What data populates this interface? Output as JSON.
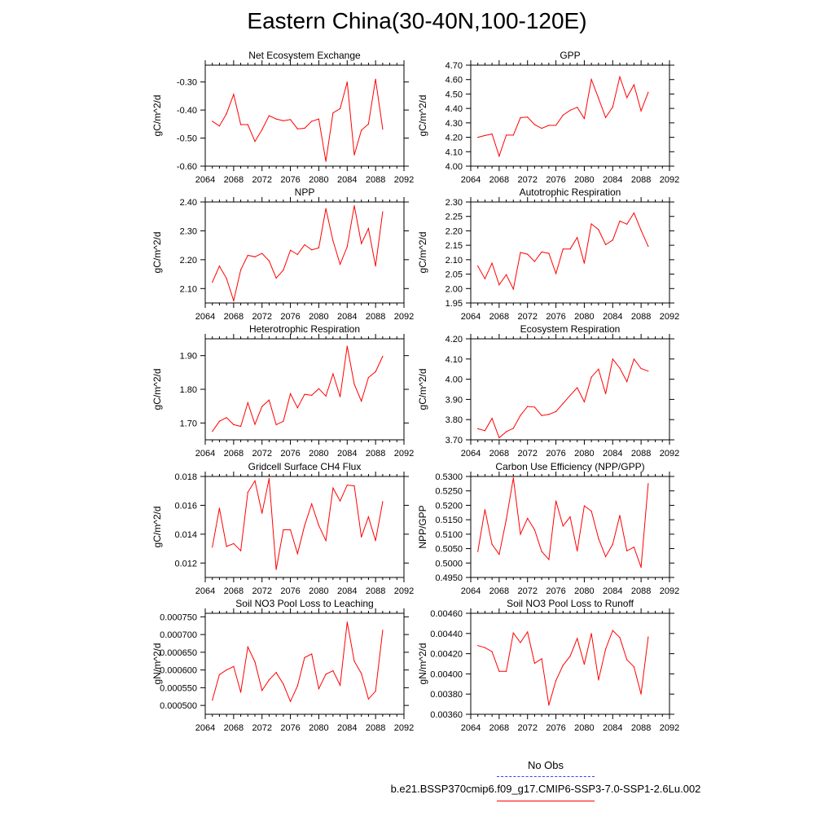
{
  "title": "Eastern China(30-40N,100-120E)",
  "legend": {
    "obs_label": "No Obs",
    "case_label": "b.e21.BSSP370cmip6.f09_g17.CMIP6-SSP3-7.0-SSP1-2.6Lu.002",
    "obs_color": "#3b3bff",
    "case_color": "#ff0000"
  },
  "chart_data": [
    {
      "type": "line",
      "title": "Net Ecosystem Exchange",
      "ylabel": "gC/m^2/d",
      "xlim": [
        2064,
        2092
      ],
      "xticks": [
        "2064",
        "2068",
        "2072",
        "2076",
        "2080",
        "2084",
        "2088",
        "2092"
      ],
      "ylim": [
        -0.6,
        -0.24
      ],
      "yticks": [
        "-0.60",
        "-0.50",
        "-0.40",
        "-0.30"
      ],
      "yticks_values": [
        -0.6,
        -0.5,
        -0.4,
        -0.3
      ],
      "x": [
        2065,
        2066,
        2067,
        2068,
        2069,
        2070,
        2071,
        2072,
        2073,
        2074,
        2075,
        2076,
        2077,
        2078,
        2079,
        2080,
        2081,
        2082,
        2083,
        2084,
        2085,
        2086,
        2087,
        2088,
        2089
      ],
      "series": [
        {
          "color": "#ff0000",
          "values": [
            -0.44,
            -0.457,
            -0.413,
            -0.344,
            -0.452,
            -0.452,
            -0.512,
            -0.47,
            -0.42,
            -0.432,
            -0.438,
            -0.434,
            -0.467,
            -0.465,
            -0.44,
            -0.432,
            -0.583,
            -0.41,
            -0.395,
            -0.3,
            -0.56,
            -0.472,
            -0.45,
            -0.29,
            -0.468
          ]
        }
      ]
    },
    {
      "type": "line",
      "title": "GPP",
      "ylabel": "gC/m^2/d",
      "xlim": [
        2064,
        2092
      ],
      "xticks": [
        "2064",
        "2068",
        "2072",
        "2076",
        "2080",
        "2084",
        "2088",
        "2092"
      ],
      "ylim": [
        4.0,
        4.7
      ],
      "yticks": [
        "4.00",
        "4.10",
        "4.20",
        "4.30",
        "4.40",
        "4.50",
        "4.60",
        "4.70"
      ],
      "yticks_values": [
        4.0,
        4.1,
        4.2,
        4.3,
        4.4,
        4.5,
        4.6,
        4.7
      ],
      "x": [
        2065,
        2066,
        2067,
        2068,
        2069,
        2070,
        2071,
        2072,
        2073,
        2074,
        2075,
        2076,
        2077,
        2078,
        2079,
        2080,
        2081,
        2082,
        2083,
        2084,
        2085,
        2086,
        2087,
        2088,
        2089
      ],
      "series": [
        {
          "color": "#ff0000",
          "values": [
            4.2,
            4.212,
            4.223,
            4.07,
            4.215,
            4.215,
            4.336,
            4.34,
            4.288,
            4.262,
            4.283,
            4.283,
            4.354,
            4.387,
            4.408,
            4.33,
            4.601,
            4.47,
            4.337,
            4.41,
            4.619,
            4.475,
            4.564,
            4.383,
            4.512
          ]
        }
      ]
    },
    {
      "type": "line",
      "title": "NPP",
      "ylabel": "gC/m^2/d",
      "xlim": [
        2064,
        2092
      ],
      "xticks": [
        "2064",
        "2068",
        "2072",
        "2076",
        "2080",
        "2084",
        "2088",
        "2092"
      ],
      "ylim": [
        2.05,
        2.4
      ],
      "yticks": [
        "2.10",
        "2.20",
        "2.30",
        "2.40"
      ],
      "yticks_values": [
        2.1,
        2.2,
        2.3,
        2.4
      ],
      "x": [
        2065,
        2066,
        2067,
        2068,
        2069,
        2070,
        2071,
        2072,
        2073,
        2074,
        2075,
        2076,
        2077,
        2078,
        2079,
        2080,
        2081,
        2082,
        2083,
        2084,
        2085,
        2086,
        2087,
        2088,
        2089
      ],
      "series": [
        {
          "color": "#ff0000",
          "values": [
            2.122,
            2.178,
            2.135,
            2.058,
            2.165,
            2.215,
            2.21,
            2.222,
            2.196,
            2.136,
            2.164,
            2.233,
            2.218,
            2.252,
            2.234,
            2.241,
            2.377,
            2.265,
            2.184,
            2.245,
            2.387,
            2.256,
            2.308,
            2.178,
            2.366
          ]
        }
      ]
    },
    {
      "type": "line",
      "title": "Autotrophic Respiration",
      "ylabel": "gC/m^2/d",
      "xlim": [
        2064,
        2092
      ],
      "xticks": [
        "2064",
        "2068",
        "2072",
        "2076",
        "2080",
        "2084",
        "2088",
        "2092"
      ],
      "ylim": [
        1.95,
        2.3
      ],
      "yticks": [
        "1.95",
        "2.00",
        "2.05",
        "2.10",
        "2.15",
        "2.20",
        "2.25",
        "2.30"
      ],
      "yticks_values": [
        1.95,
        2.0,
        2.05,
        2.1,
        2.15,
        2.2,
        2.25,
        2.3
      ],
      "x": [
        2065,
        2066,
        2067,
        2068,
        2069,
        2070,
        2071,
        2072,
        2073,
        2074,
        2075,
        2076,
        2077,
        2078,
        2079,
        2080,
        2081,
        2082,
        2083,
        2084,
        2085,
        2086,
        2087,
        2088,
        2089
      ],
      "series": [
        {
          "color": "#ff0000",
          "values": [
            2.078,
            2.034,
            2.088,
            2.013,
            2.048,
            1.998,
            2.125,
            2.119,
            2.094,
            2.127,
            2.122,
            2.052,
            2.137,
            2.137,
            2.177,
            2.088,
            2.224,
            2.204,
            2.152,
            2.168,
            2.234,
            2.223,
            2.262,
            2.202,
            2.146
          ]
        }
      ]
    },
    {
      "type": "line",
      "title": "Heterotrophic Respiration",
      "ylabel": "gC/m^2/d",
      "xlim": [
        2064,
        2092
      ],
      "xticks": [
        "2064",
        "2068",
        "2072",
        "2076",
        "2080",
        "2084",
        "2088",
        "2092"
      ],
      "ylim": [
        1.65,
        1.95
      ],
      "yticks": [
        "1.70",
        "1.80",
        "1.90"
      ],
      "yticks_values": [
        1.7,
        1.8,
        1.9
      ],
      "x": [
        2065,
        2066,
        2067,
        2068,
        2069,
        2070,
        2071,
        2072,
        2073,
        2074,
        2075,
        2076,
        2077,
        2078,
        2079,
        2080,
        2081,
        2082,
        2083,
        2084,
        2085,
        2086,
        2087,
        2088,
        2089
      ],
      "series": [
        {
          "color": "#ff0000",
          "values": [
            1.675,
            1.705,
            1.716,
            1.695,
            1.69,
            1.76,
            1.696,
            1.749,
            1.768,
            1.695,
            1.705,
            1.787,
            1.745,
            1.785,
            1.782,
            1.802,
            1.78,
            1.846,
            1.778,
            1.928,
            1.815,
            1.765,
            1.835,
            1.852,
            1.898
          ]
        }
      ]
    },
    {
      "type": "line",
      "title": "Ecosystem Respiration",
      "ylabel": "gC/m^2/d",
      "xlim": [
        2064,
        2092
      ],
      "xticks": [
        "2064",
        "2068",
        "2072",
        "2076",
        "2080",
        "2084",
        "2088",
        "2092"
      ],
      "ylim": [
        3.7,
        4.2
      ],
      "yticks": [
        "3.70",
        "3.80",
        "3.90",
        "4.00",
        "4.10",
        "4.20"
      ],
      "yticks_values": [
        3.7,
        3.8,
        3.9,
        4.0,
        4.1,
        4.2
      ],
      "x": [
        2065,
        2066,
        2067,
        2068,
        2069,
        2070,
        2071,
        2072,
        2073,
        2074,
        2075,
        2076,
        2077,
        2078,
        2079,
        2080,
        2081,
        2082,
        2083,
        2084,
        2085,
        2086,
        2087,
        2088,
        2089
      ],
      "series": [
        {
          "color": "#ff0000",
          "values": [
            3.755,
            3.745,
            3.806,
            3.71,
            3.74,
            3.757,
            3.821,
            3.865,
            3.862,
            3.82,
            3.826,
            3.84,
            3.88,
            3.92,
            3.958,
            3.888,
            4.01,
            4.05,
            3.928,
            4.1,
            4.055,
            3.988,
            4.1,
            4.053,
            4.04
          ]
        }
      ]
    },
    {
      "type": "line",
      "title": "Gridcell Surface CH4 Flux",
      "ylabel": "gC/m^2/d",
      "xlim": [
        2064,
        2092
      ],
      "xticks": [
        "2064",
        "2068",
        "2072",
        "2076",
        "2080",
        "2084",
        "2088",
        "2092"
      ],
      "ylim": [
        0.011,
        0.018
      ],
      "yticks": [
        "0.012",
        "0.014",
        "0.016",
        "0.018"
      ],
      "yticks_values": [
        0.012,
        0.014,
        0.016,
        0.018
      ],
      "x": [
        2065,
        2066,
        2067,
        2068,
        2069,
        2070,
        2071,
        2072,
        2073,
        2074,
        2075,
        2076,
        2077,
        2078,
        2079,
        2080,
        2081,
        2082,
        2083,
        2084,
        2085,
        2086,
        2087,
        2088,
        2089
      ],
      "series": [
        {
          "color": "#ff0000",
          "values": [
            0.0131,
            0.0158,
            0.01315,
            0.01335,
            0.01285,
            0.0169,
            0.0177,
            0.01545,
            0.01785,
            0.01155,
            0.0143,
            0.0143,
            0.01265,
            0.0146,
            0.0161,
            0.0146,
            0.01355,
            0.0172,
            0.0163,
            0.0174,
            0.01735,
            0.0138,
            0.0152,
            0.01355,
            0.01625
          ]
        }
      ]
    },
    {
      "type": "line",
      "title": "Carbon Use Efficiency (NPP/GPP)",
      "ylabel": "NPP/GPP",
      "xlim": [
        2064,
        2092
      ],
      "xticks": [
        "2064",
        "2068",
        "2072",
        "2076",
        "2080",
        "2084",
        "2088",
        "2092"
      ],
      "ylim": [
        0.495,
        0.53
      ],
      "yticks": [
        "0.4950",
        "0.5000",
        "0.5050",
        "0.5100",
        "0.5150",
        "0.5200",
        "0.5250",
        "0.5300"
      ],
      "yticks_values": [
        0.495,
        0.5,
        0.505,
        0.51,
        0.515,
        0.52,
        0.525,
        0.53
      ],
      "x": [
        2065,
        2066,
        2067,
        2068,
        2069,
        2070,
        2071,
        2072,
        2073,
        2074,
        2075,
        2076,
        2077,
        2078,
        2079,
        2080,
        2081,
        2082,
        2083,
        2084,
        2085,
        2086,
        2087,
        2088,
        2089
      ],
      "series": [
        {
          "color": "#ff0000",
          "values": [
            0.504,
            0.5185,
            0.5065,
            0.503,
            0.515,
            0.5295,
            0.51,
            0.5155,
            0.5115,
            0.504,
            0.5012,
            0.5215,
            0.5128,
            0.516,
            0.5042,
            0.5198,
            0.518,
            0.5085,
            0.5022,
            0.5065,
            0.5165,
            0.5042,
            0.5055,
            0.4985,
            0.5275
          ]
        }
      ]
    },
    {
      "type": "line",
      "title": "Soil NO3 Pool Loss to Leaching",
      "ylabel": "gN/m^2/d",
      "xlim": [
        2064,
        2092
      ],
      "xticks": [
        "2064",
        "2068",
        "2072",
        "2076",
        "2080",
        "2084",
        "2088",
        "2092"
      ],
      "ylim": [
        0.000475,
        0.00076
      ],
      "yticks": [
        "0.000500",
        "0.000550",
        "0.000600",
        "0.000650",
        "0.000700",
        "0.000750"
      ],
      "yticks_values": [
        0.0005,
        0.00055,
        0.0006,
        0.00065,
        0.0007,
        0.00075
      ],
      "x": [
        2065,
        2066,
        2067,
        2068,
        2069,
        2070,
        2071,
        2072,
        2073,
        2074,
        2075,
        2076,
        2077,
        2078,
        2079,
        2080,
        2081,
        2082,
        2083,
        2084,
        2085,
        2086,
        2087,
        2088,
        2089
      ],
      "series": [
        {
          "color": "#ff0000",
          "values": [
            0.000515,
            0.000587,
            0.0006,
            0.00061,
            0.000537,
            0.000665,
            0.000623,
            0.000542,
            0.000572,
            0.000593,
            0.00056,
            0.000511,
            0.000555,
            0.000635,
            0.000645,
            0.000547,
            0.000588,
            0.000598,
            0.000557,
            0.000735,
            0.000625,
            0.00059,
            0.000518,
            0.00054,
            0.000712
          ]
        }
      ]
    },
    {
      "type": "line",
      "title": "Soil NO3 Pool Loss to Runoff",
      "ylabel": "gN/m^2/d",
      "xlim": [
        2064,
        2092
      ],
      "xticks": [
        "2064",
        "2068",
        "2072",
        "2076",
        "2080",
        "2084",
        "2088",
        "2092"
      ],
      "ylim": [
        0.0036,
        0.0046
      ],
      "yticks": [
        "0.00360",
        "0.00380",
        "0.00400",
        "0.00420",
        "0.00440",
        "0.00460"
      ],
      "yticks_values": [
        0.0036,
        0.0038,
        0.004,
        0.0042,
        0.0044,
        0.0046
      ],
      "x": [
        2065,
        2066,
        2067,
        2068,
        2069,
        2070,
        2071,
        2072,
        2073,
        2074,
        2075,
        2076,
        2077,
        2078,
        2079,
        2080,
        2081,
        2082,
        2083,
        2084,
        2085,
        2086,
        2087,
        2088,
        2089
      ],
      "series": [
        {
          "color": "#ff0000",
          "values": [
            0.00428,
            0.00426,
            0.00422,
            0.004025,
            0.004025,
            0.004405,
            0.00431,
            0.004415,
            0.004105,
            0.00415,
            0.00369,
            0.003935,
            0.004085,
            0.004175,
            0.00435,
            0.004095,
            0.0044,
            0.00394,
            0.004245,
            0.00443,
            0.00436,
            0.00414,
            0.00407,
            0.0038,
            0.004365
          ]
        }
      ]
    }
  ]
}
